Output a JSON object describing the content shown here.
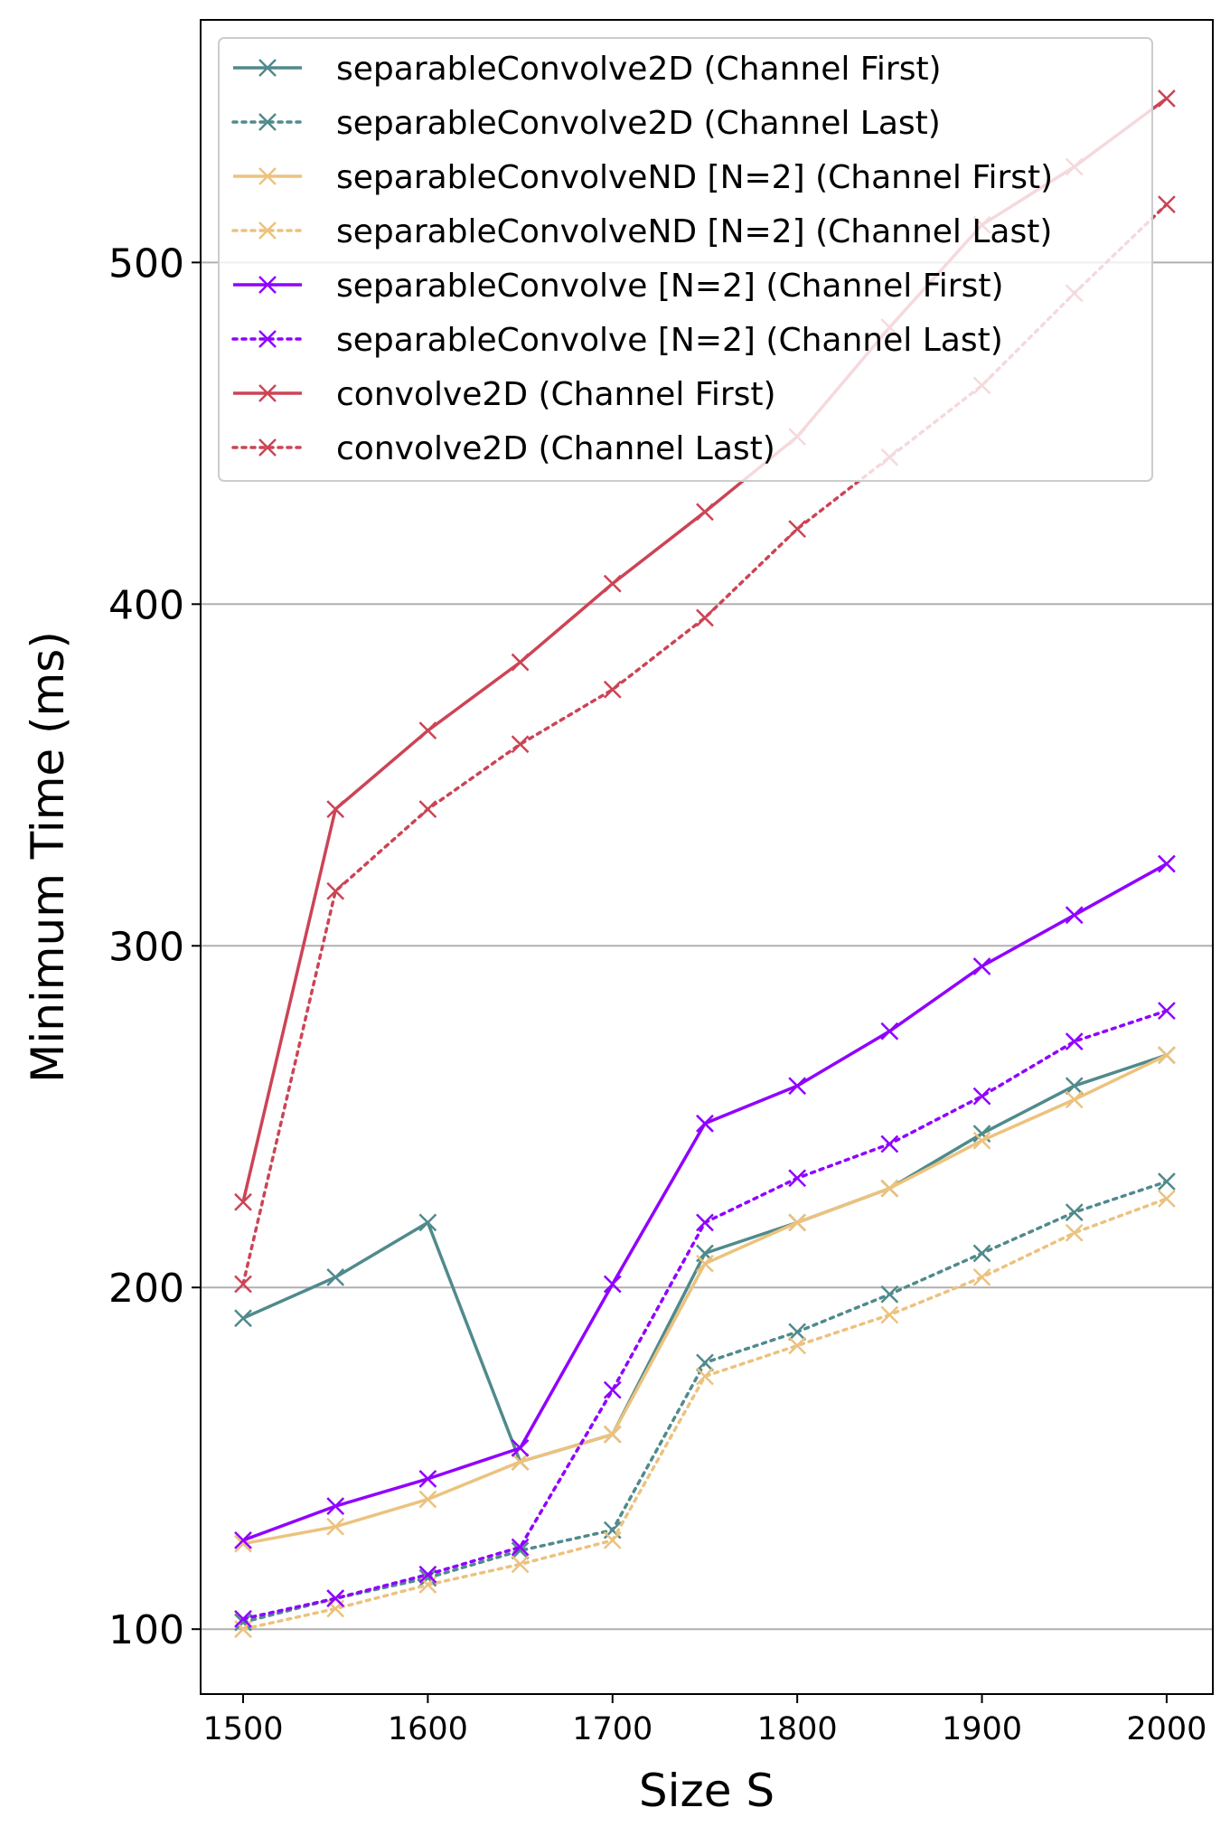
{
  "chart_data": {
    "type": "line",
    "title": "",
    "xlabel": "Size S",
    "ylabel": "Minimum Time (ms)",
    "x": [
      1500,
      1550,
      1600,
      1650,
      1700,
      1750,
      1800,
      1850,
      1900,
      1950,
      2000
    ],
    "xlim": [
      1477,
      2025
    ],
    "ylim": [
      81,
      571
    ],
    "xticks": [
      1500,
      1600,
      1700,
      1800,
      1900,
      2000
    ],
    "yticks": [
      100,
      200,
      300,
      400,
      500
    ],
    "grid": "horizontal",
    "legend_position": "top-left",
    "series": [
      {
        "name": "separableConvolve2D (Channel First)",
        "color": "#508a8c",
        "style": "solid",
        "values": [
          191,
          203,
          219,
          149,
          157,
          210,
          219,
          229,
          245,
          259,
          268
        ]
      },
      {
        "name": "separableConvolve2D (Channel Last)",
        "color": "#508a8c",
        "style": "dotted",
        "values": [
          102,
          109,
          115,
          123,
          129,
          178,
          187,
          198,
          210,
          222,
          231
        ]
      },
      {
        "name": "separableConvolveND [N=2] (Channel First)",
        "color": "#ecc27e",
        "style": "solid",
        "values": [
          125,
          130,
          138,
          149,
          157,
          207,
          219,
          229,
          243,
          255,
          268
        ]
      },
      {
        "name": "separableConvolveND [N=2] (Channel Last)",
        "color": "#ecc27e",
        "style": "dotted",
        "values": [
          100,
          106,
          113,
          119,
          126,
          174,
          183,
          192,
          203,
          216,
          226
        ]
      },
      {
        "name": "separableConvolve [N=2] (Channel First)",
        "color": "#9000ff",
        "style": "solid",
        "values": [
          126,
          136,
          144,
          153,
          201,
          248,
          259,
          275,
          294,
          309,
          324
        ]
      },
      {
        "name": "separableConvolve [N=2] (Channel Last)",
        "color": "#9000ff",
        "style": "dotted",
        "values": [
          103,
          109,
          116,
          124,
          170,
          219,
          232,
          242,
          256,
          272,
          281
        ]
      },
      {
        "name": "convolve2D (Channel First)",
        "color": "#cc4455",
        "style": "solid",
        "values": [
          225,
          340,
          363,
          383,
          406,
          427,
          449,
          481,
          511,
          528,
          548
        ]
      },
      {
        "name": "convolve2D (Channel Last)",
        "color": "#cc4455",
        "style": "dotted",
        "values": [
          201,
          316,
          340,
          359,
          375,
          396,
          422,
          443,
          464,
          491,
          517
        ]
      }
    ]
  }
}
